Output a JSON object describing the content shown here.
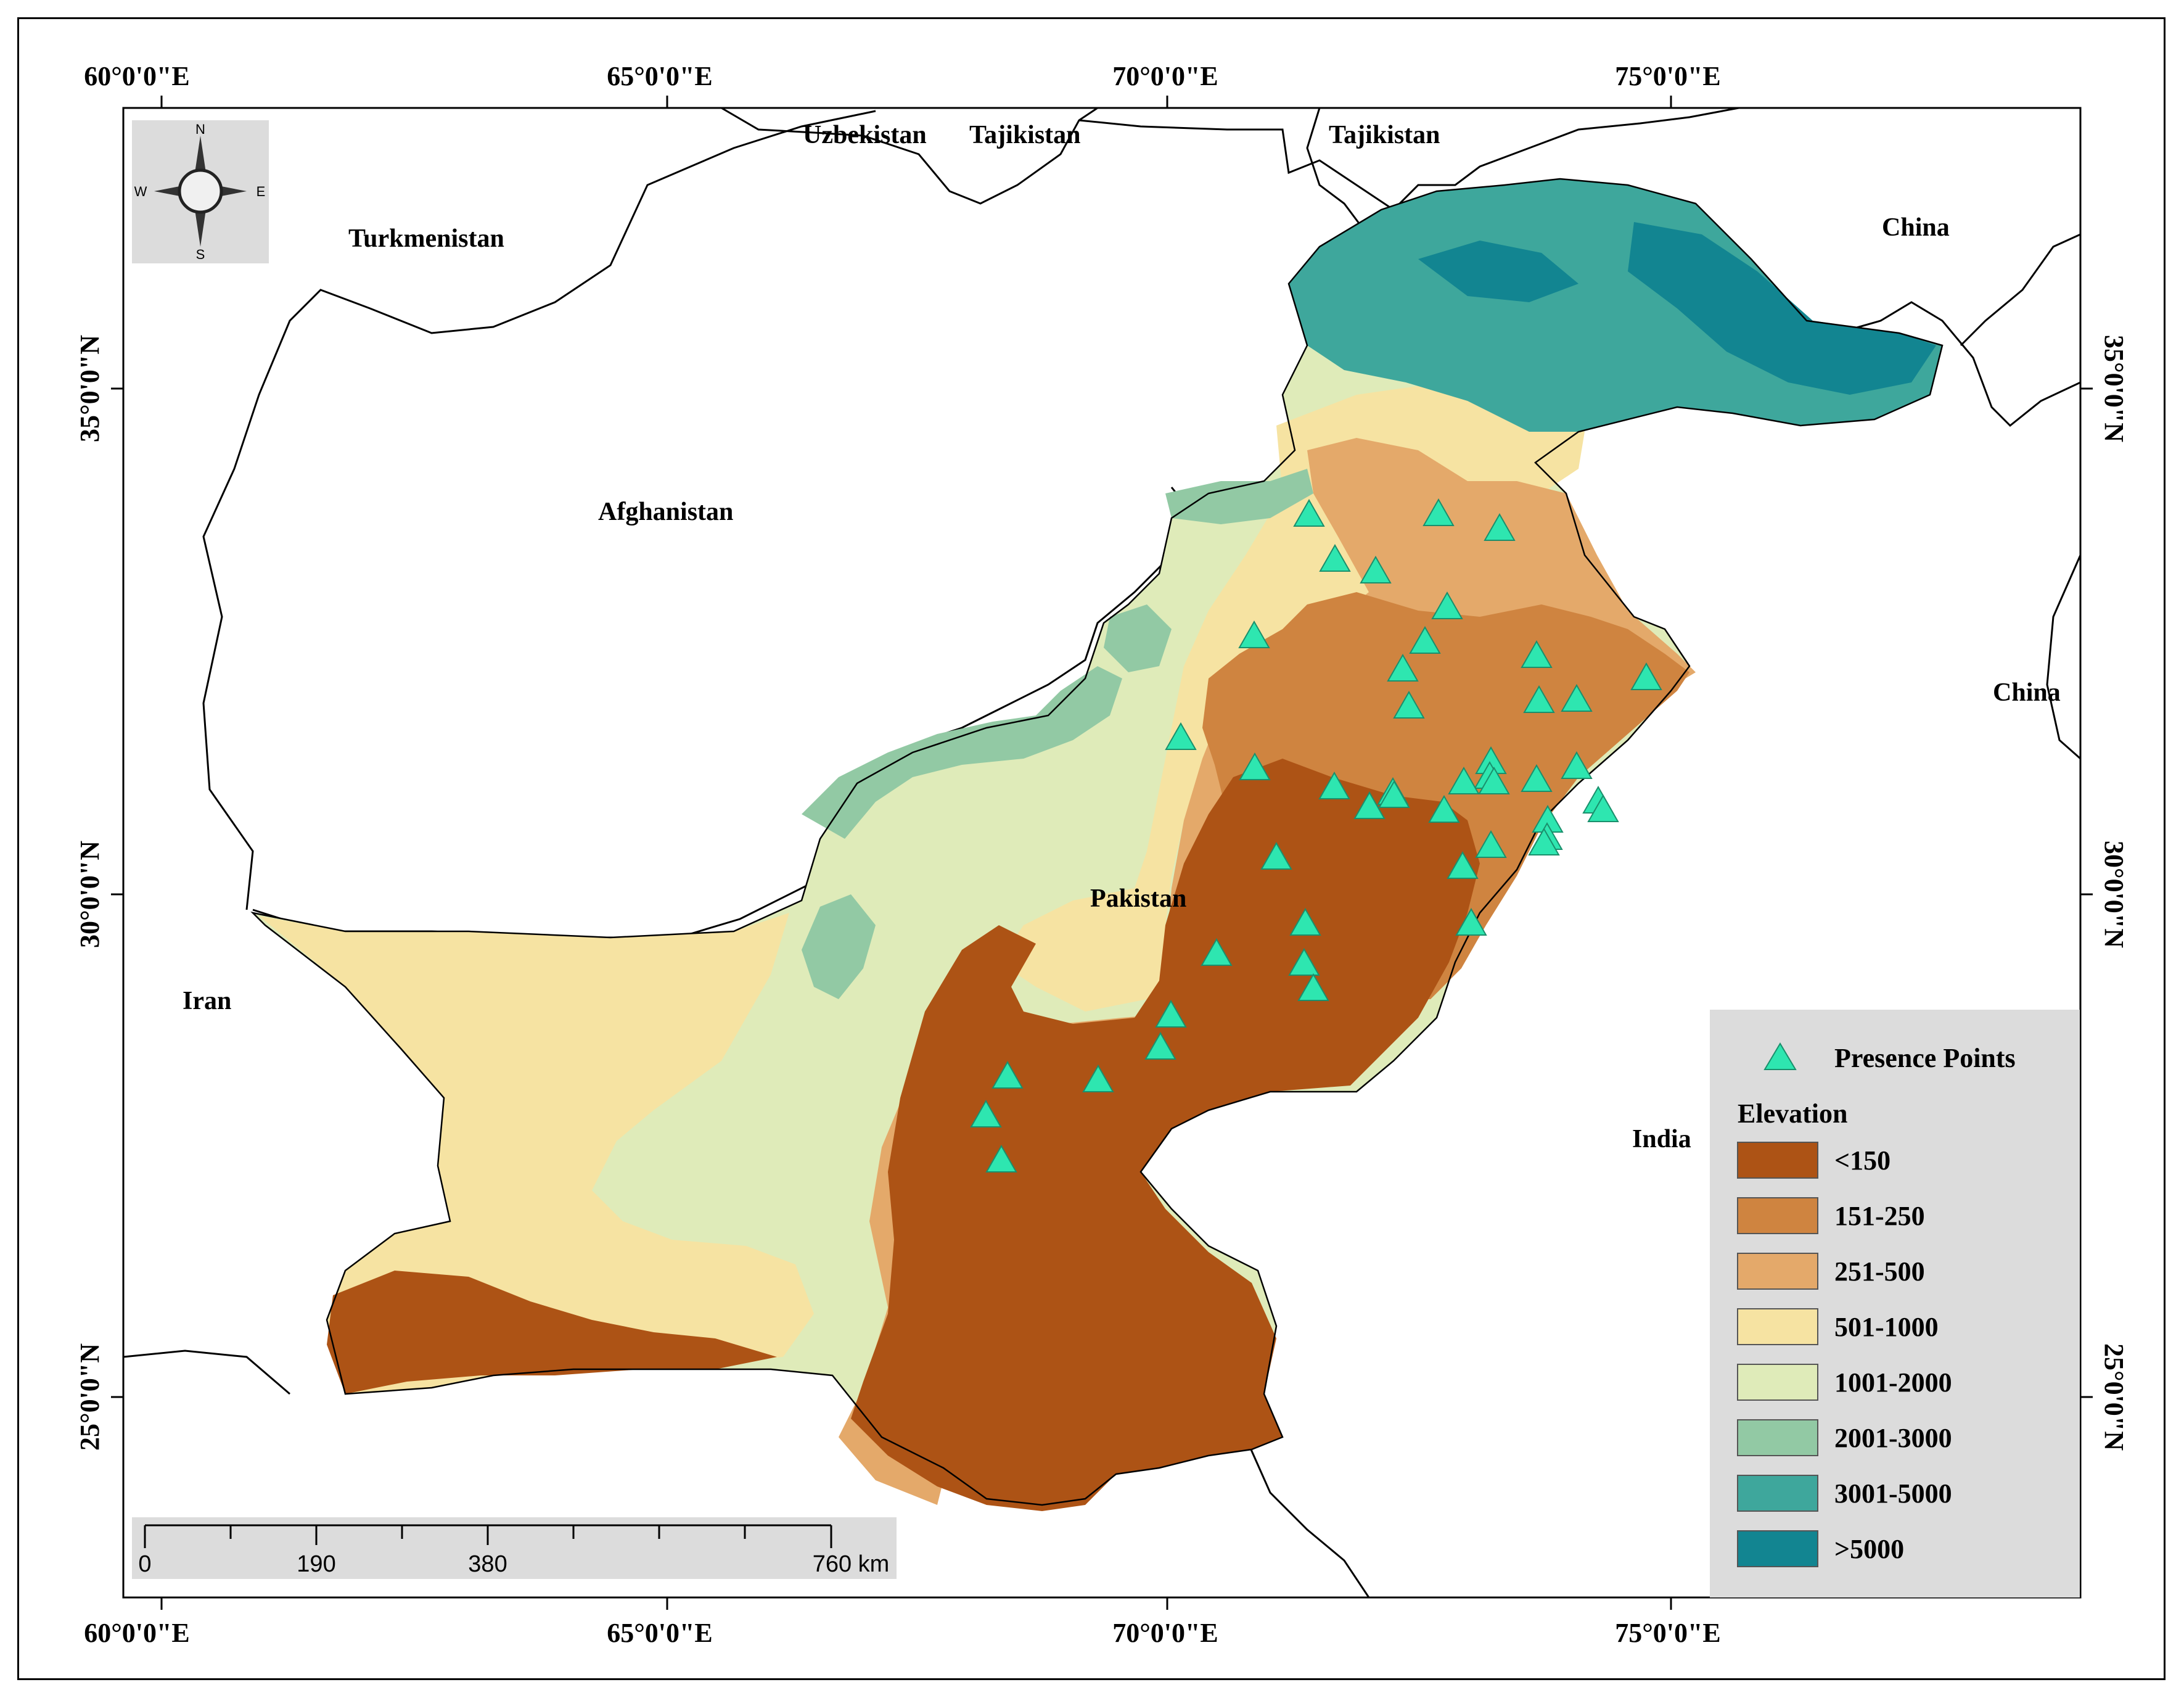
{
  "map": {
    "graticule": {
      "top_longitudes": [
        "60°0'0\"E",
        "65°0'0\"E",
        "70°0'0\"E",
        "75°0'0\"E"
      ],
      "bottom_longitudes": [
        "60°0'0\"E",
        "65°0'0\"E",
        "70°0'0\"E",
        "75°0'0\"E"
      ],
      "left_latitudes": [
        "35°0'0\"N",
        "30°0'0\"N",
        "25°0'0\"N"
      ],
      "right_latitudes": [
        "35°0'0\"N",
        "30°0'0\"N",
        "25°0'0\"N"
      ]
    },
    "countries": {
      "uzbekistan": "Uzbekistan",
      "tajikistan_1": "Tajikistan",
      "tajikistan_2": "Tajikistan",
      "turkmenistan": "Turkmenistan",
      "china_1": "China",
      "china_2": "China",
      "afghanistan": "Afghanistan",
      "pakistan": "Pakistan",
      "iran": "Iran",
      "india": "India"
    },
    "compass": {
      "n": "N",
      "s": "S",
      "e": "E",
      "w": "W"
    },
    "scale_bar": {
      "labels": [
        "0",
        "190",
        "380",
        "760 km"
      ]
    },
    "legend": {
      "presence_label": "Presence Points",
      "elevation_title": "Elevation",
      "presence_color": "#2ee6b0",
      "classes": [
        {
          "label": "<150",
          "color": "#ad5315"
        },
        {
          "label": "151-250",
          "color": "#cf8440"
        },
        {
          "label": "251-500",
          "color": "#e4a96a"
        },
        {
          "label": "501-1000",
          "color": "#f6e3a2"
        },
        {
          "label": "1001-2000",
          "color": "#dfebb9"
        },
        {
          "label": "2001-3000",
          "color": "#92c9a4"
        },
        {
          "label": "3001-5000",
          "color": "#3ea79c"
        },
        {
          "label": ">5000",
          "color": "#128591"
        }
      ]
    },
    "presence_points_count": 45
  }
}
